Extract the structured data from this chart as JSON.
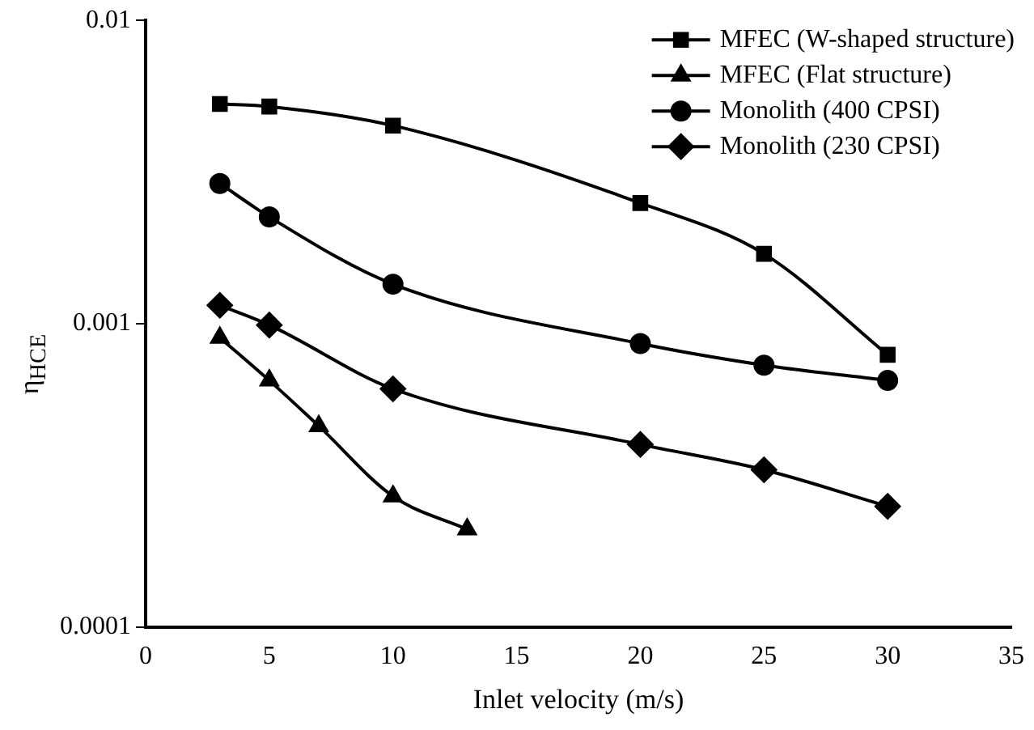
{
  "chart_data": {
    "type": "line",
    "xlabel": "Inlet velocity (m/s)",
    "ylabel": "η$_{HCE}$",
    "xlim": [
      0,
      35
    ],
    "xticks": [
      0,
      5,
      10,
      15,
      20,
      25,
      30,
      35
    ],
    "ylim": [
      0.0001,
      0.01
    ],
    "yticks": [
      0.0001,
      0.001,
      0.01
    ],
    "log": "y",
    "grid": false,
    "legend": "top right",
    "series": [
      {
        "name": "MFEC (W-shaped structure)",
        "color": "#000000",
        "marker": "square",
        "x": [
          3,
          5,
          10,
          20,
          25,
          30
        ],
        "values": [
          0.0053,
          0.0052,
          0.0045,
          0.0025,
          0.0017,
          0.00079
        ]
      },
      {
        "name": "MFEC (Flat structure)",
        "color": "#000000",
        "marker": "triangle",
        "x": [
          3,
          5,
          7,
          10,
          13
        ],
        "values": [
          0.0009,
          0.00065,
          0.00046,
          0.00027,
          0.00021
        ]
      },
      {
        "name": "Monolith (400 CPSI)",
        "color": "#000000",
        "marker": "circle",
        "x": [
          3,
          5,
          10,
          20,
          25,
          30
        ],
        "values": [
          0.0029,
          0.00225,
          0.00135,
          0.00086,
          0.00073,
          0.00065
        ]
      },
      {
        "name": "Monolith (230 CPSI)",
        "color": "#000000",
        "marker": "diamond",
        "x": [
          3,
          5,
          10,
          20,
          25,
          30
        ],
        "values": [
          0.00115,
          0.00099,
          0.00061,
          0.0004,
          0.00033,
          0.00025
        ]
      }
    ]
  }
}
